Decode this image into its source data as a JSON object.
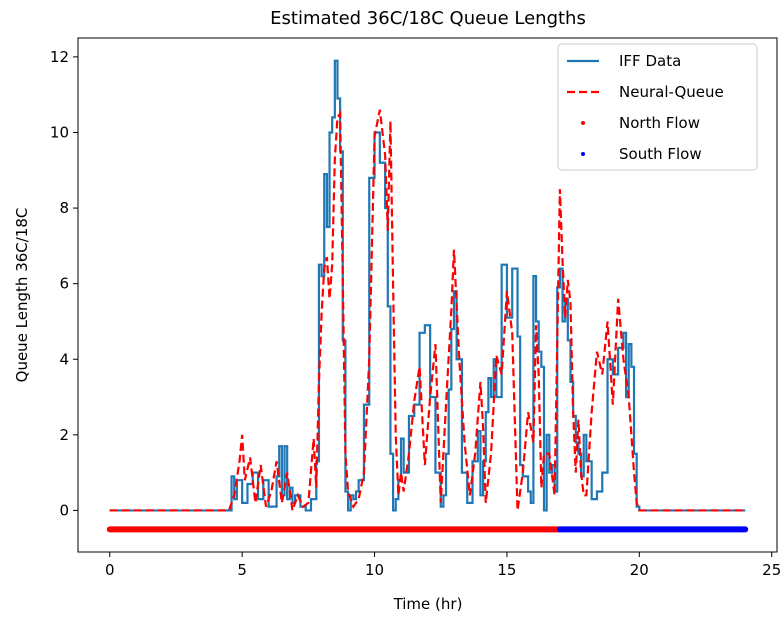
{
  "chart_data": {
    "type": "line",
    "title": "Estimated 36C/18C Queue Lengths",
    "xlabel": "Time (hr)",
    "ylabel": "Queue Length 36C/18C",
    "xlim": [
      -1.2,
      25.2
    ],
    "ylim": [
      -1.1,
      12.5
    ],
    "xticks": [
      0,
      5,
      10,
      15,
      20,
      25
    ],
    "yticks": [
      0,
      2,
      4,
      6,
      8,
      10,
      12
    ],
    "grid": false,
    "legend_position": "top-right",
    "colors": {
      "iff": "#1f77b4",
      "neural": "#ff0000",
      "north": "#ff0000",
      "south": "#0000ff"
    },
    "series": [
      {
        "name": "IFF Data",
        "style": "solid-step",
        "x": [
          0,
          4.6,
          4.7,
          4.8,
          5.0,
          5.2,
          5.4,
          5.6,
          5.8,
          6.0,
          6.3,
          6.4,
          6.5,
          6.6,
          6.7,
          6.8,
          6.9,
          7.0,
          7.2,
          7.4,
          7.6,
          7.8,
          7.9,
          8.0,
          8.1,
          8.2,
          8.3,
          8.4,
          8.5,
          8.6,
          8.7,
          8.8,
          8.9,
          9.0,
          9.1,
          9.2,
          9.3,
          9.4,
          9.6,
          9.8,
          10.0,
          10.2,
          10.4,
          10.5,
          10.6,
          10.7,
          10.8,
          10.9,
          11.0,
          11.1,
          11.3,
          11.5,
          11.7,
          11.9,
          12.1,
          12.3,
          12.5,
          12.6,
          12.7,
          12.8,
          12.9,
          13.0,
          13.1,
          13.3,
          13.5,
          13.7,
          13.9,
          14.0,
          14.1,
          14.2,
          14.3,
          14.4,
          14.5,
          14.6,
          14.8,
          15.0,
          15.2,
          15.4,
          15.5,
          15.6,
          15.8,
          15.9,
          16.0,
          16.1,
          16.2,
          16.3,
          16.4,
          16.5,
          16.6,
          16.7,
          16.8,
          16.9,
          17.0,
          17.1,
          17.2,
          17.3,
          17.4,
          17.5,
          17.6,
          17.7,
          17.8,
          17.9,
          18.0,
          18.2,
          18.4,
          18.6,
          18.8,
          19.0,
          19.2,
          19.4,
          19.5,
          19.6,
          19.7,
          19.8,
          19.9,
          20.0,
          20.1,
          20.2,
          24
        ],
        "y": [
          0,
          0.9,
          0.3,
          0.8,
          0.2,
          0.7,
          1.0,
          0.3,
          0.8,
          0.1,
          0.9,
          1.7,
          0.4,
          1.7,
          0.3,
          0.6,
          0.2,
          0.4,
          0.1,
          0.0,
          0.3,
          1.3,
          6.5,
          6.2,
          8.9,
          7.5,
          10.0,
          10.4,
          11.9,
          10.9,
          9.5,
          4.5,
          0.5,
          0.0,
          0.4,
          0.3,
          0.5,
          0.8,
          2.8,
          8.8,
          10.0,
          9.2,
          8.0,
          5.4,
          1.5,
          0.0,
          0.3,
          0.8,
          1.9,
          1.0,
          2.5,
          2.8,
          4.7,
          4.9,
          3.0,
          1.0,
          0.1,
          0.4,
          1.5,
          3.2,
          4.8,
          5.8,
          4.0,
          1.0,
          0.2,
          1.3,
          2.1,
          0.4,
          1.3,
          2.6,
          3.5,
          3.0,
          4.0,
          3.0,
          6.5,
          5.1,
          6.4,
          4.6,
          1.2,
          0.9,
          0.5,
          0.2,
          6.2,
          5.0,
          4.2,
          3.8,
          0.0,
          2.0,
          1.0,
          1.2,
          0.5,
          5.9,
          6.4,
          5.0,
          5.6,
          4.5,
          3.4,
          2.5,
          1.8,
          1.5,
          0.9,
          2.0,
          1.3,
          0.3,
          0.5,
          1.0,
          4.0,
          3.6,
          4.3,
          4.7,
          3.0,
          4.4,
          3.8,
          1.5,
          0.1,
          0,
          0,
          0,
          0
        ]
      },
      {
        "name": "Neural-Queue",
        "style": "dashed",
        "x": [
          0,
          4.5,
          4.7,
          4.9,
          5.0,
          5.1,
          5.3,
          5.5,
          5.7,
          5.9,
          6.1,
          6.3,
          6.5,
          6.7,
          6.9,
          7.1,
          7.3,
          7.5,
          7.7,
          7.8,
          7.9,
          8.0,
          8.1,
          8.2,
          8.3,
          8.4,
          8.5,
          8.6,
          8.7,
          8.8,
          8.9,
          9.0,
          9.2,
          9.4,
          9.6,
          9.8,
          10.0,
          10.2,
          10.4,
          10.5,
          10.6,
          10.7,
          10.8,
          10.9,
          11.0,
          11.1,
          11.3,
          11.5,
          11.7,
          11.9,
          12.1,
          12.3,
          12.5,
          12.7,
          12.9,
          13.0,
          13.2,
          13.4,
          13.6,
          13.8,
          14.0,
          14.1,
          14.2,
          14.4,
          14.6,
          14.8,
          15.0,
          15.2,
          15.4,
          15.6,
          15.8,
          16.0,
          16.1,
          16.2,
          16.3,
          16.4,
          16.6,
          16.8,
          17.0,
          17.1,
          17.2,
          17.3,
          17.4,
          17.5,
          17.6,
          17.7,
          17.8,
          17.9,
          18.0,
          18.2,
          18.4,
          18.6,
          18.8,
          19.0,
          19.2,
          19.4,
          19.6,
          19.8,
          19.9,
          20.0,
          20.1,
          20.2,
          20.3,
          24
        ],
        "y": [
          0,
          0,
          0.4,
          1.3,
          2.0,
          0.8,
          1.4,
          0.2,
          1.2,
          0.1,
          0.5,
          1.3,
          0.2,
          1.0,
          0.0,
          0.4,
          0.1,
          0.2,
          1.9,
          0.6,
          3.4,
          5.2,
          6.4,
          6.7,
          5.6,
          6.5,
          9.3,
          10.4,
          10.5,
          6.1,
          1.5,
          0.5,
          0.1,
          0.3,
          1.0,
          4.0,
          9.9,
          10.6,
          9.4,
          7.4,
          10.3,
          6.0,
          2.0,
          0.4,
          1.0,
          0.5,
          1.5,
          2.9,
          3.8,
          1.2,
          3.0,
          4.4,
          0.2,
          2.8,
          5.3,
          6.9,
          4.0,
          1.8,
          0.4,
          1.5,
          3.4,
          2.2,
          0.2,
          1.5,
          4.1,
          3.6,
          5.8,
          4.7,
          0.0,
          1.0,
          2.6,
          1.8,
          4.9,
          3.6,
          0.6,
          1.5,
          1.5,
          0.4,
          8.5,
          6.6,
          5.1,
          6.1,
          5.5,
          2.6,
          1.0,
          2.4,
          1.0,
          0.4,
          0.4,
          2.6,
          4.2,
          3.6,
          5.0,
          2.8,
          5.6,
          4.0,
          3.0,
          1.0,
          0.2,
          0,
          0,
          0,
          0,
          0
        ]
      },
      {
        "name": "North Flow",
        "style": "dots",
        "x_range": [
          0,
          17
        ],
        "y": -0.5
      },
      {
        "name": "South Flow",
        "style": "dots",
        "x_range": [
          17,
          24
        ],
        "y": -0.5
      }
    ]
  }
}
